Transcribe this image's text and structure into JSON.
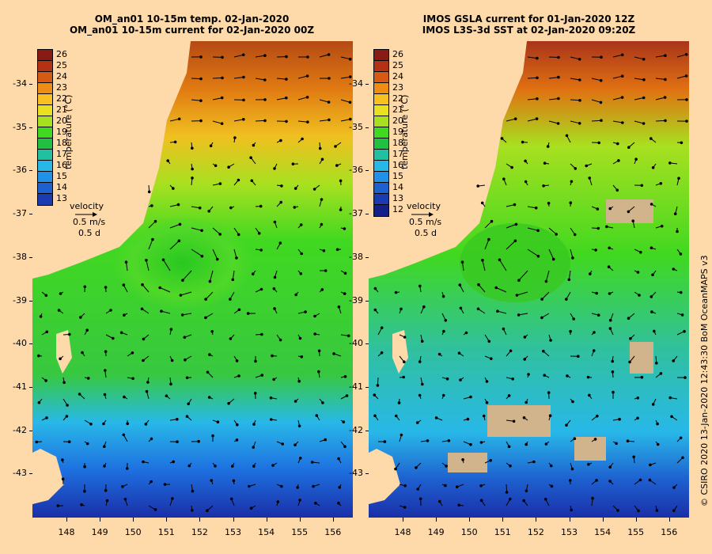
{
  "panels": [
    {
      "title_line1": "OM_an01 10-15m temp. 02-Jan-2020",
      "title_line2": "OM_an01 10-15m current for 02-Jan-2020 00Z",
      "legend_title": "temperature (°C)",
      "legend_values": [
        "26",
        "25",
        "24",
        "23",
        "22",
        "21",
        "20",
        "19",
        "18",
        "17",
        "16",
        "15",
        "14",
        "13"
      ],
      "velocity": {
        "label": "velocity",
        "speed": "0.5 m/s",
        "duration": "0.5 d"
      }
    },
    {
      "title_line1": "IMOS GSLA current for 01-Jan-2020 12Z",
      "title_line2": "IMOS L3S-3d SST at 02-Jan-2020 09:20Z",
      "legend_title": "temperature (°C)",
      "legend_values": [
        "26",
        "25",
        "24",
        "23",
        "22",
        "21",
        "20",
        "19",
        "18",
        "17",
        "16",
        "15",
        "14",
        "13",
        "12"
      ],
      "velocity": {
        "label": "velocity",
        "speed": "0.5 m/s",
        "duration": "0.5 d"
      }
    }
  ],
  "axes": {
    "latitudes": [
      "-34",
      "-35",
      "-36",
      "-37",
      "-38",
      "-39",
      "-40",
      "-41",
      "-42",
      "-43"
    ],
    "longitudes": [
      "148",
      "149",
      "150",
      "151",
      "152",
      "153",
      "154",
      "155",
      "156"
    ]
  },
  "credit": "© CSIRO 2020   13-Jan-2020 12:43:30 BoM OceanMAPS v3",
  "colors": {
    "land": "#fed9aa",
    "missing_data": "#d2b48c",
    "warm": "#b44a14",
    "mid": "#40d820",
    "cool": "#28b8e8",
    "cold": "#1a2fa8"
  }
}
